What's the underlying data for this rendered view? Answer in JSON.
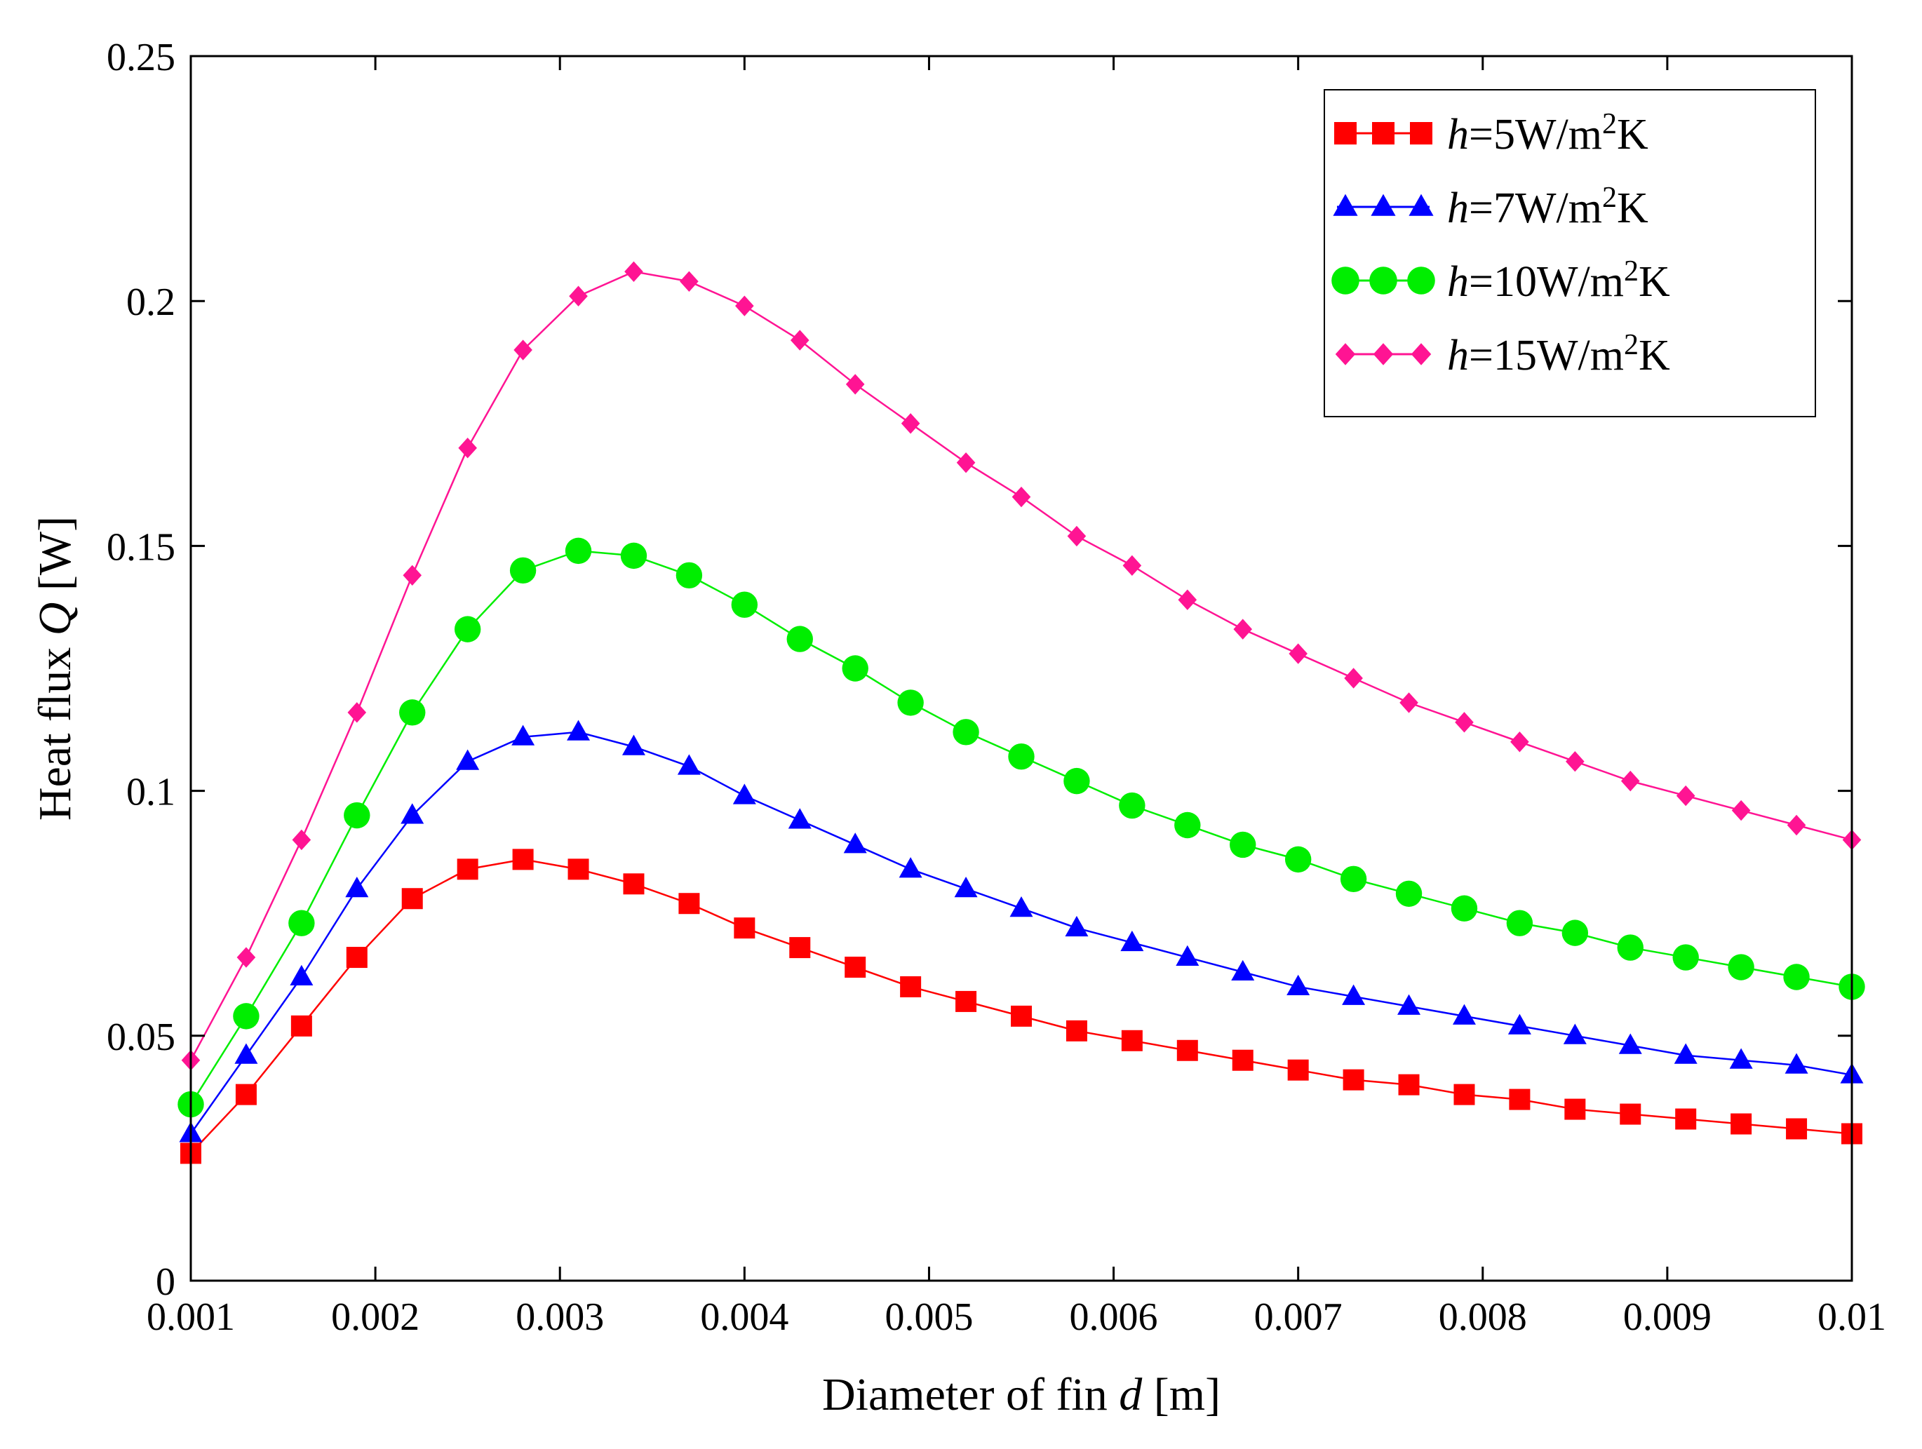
{
  "chart_data": {
    "type": "line",
    "title": "",
    "xlabel": {
      "prefix": "Diameter of fin ",
      "var": "d",
      "suffix": " [m]"
    },
    "ylabel": {
      "prefix": "Heat flux ",
      "var": "Q",
      "suffix": " [W]"
    },
    "xlim": [
      0.001,
      0.01
    ],
    "ylim": [
      0,
      0.25
    ],
    "x_ticks": [
      0.001,
      0.002,
      0.003,
      0.004,
      0.005,
      0.006,
      0.007,
      0.008,
      0.009,
      0.01
    ],
    "x_tick_labels": [
      "0.001",
      "0.002",
      "0.003",
      "0.004",
      "0.005",
      "0.006",
      "0.007",
      "0.008",
      "0.009",
      "0.01"
    ],
    "y_ticks": [
      0,
      0.05,
      0.1,
      0.15,
      0.2,
      0.25
    ],
    "y_tick_labels": [
      "0",
      "0.05",
      "0.1",
      "0.15",
      "0.2",
      "0.25"
    ],
    "grid": false,
    "legend_position": "top-right",
    "x": [
      0.001,
      0.0013,
      0.0016,
      0.0019,
      0.0022,
      0.0025,
      0.0028,
      0.0031,
      0.0034,
      0.0037,
      0.004,
      0.0043,
      0.0046,
      0.0049,
      0.0052,
      0.0055,
      0.0058,
      0.0061,
      0.0064,
      0.0067,
      0.007,
      0.0073,
      0.0076,
      0.0079,
      0.0082,
      0.0085,
      0.0088,
      0.0091,
      0.0094,
      0.0097,
      0.01
    ],
    "series": [
      {
        "name": "h=5W/m²K",
        "label_var": "h",
        "label_eq": "=5W/m",
        "label_sup": "2",
        "label_unit": "K",
        "color": "#ff0000",
        "marker": "square",
        "values": [
          0.026,
          0.038,
          0.052,
          0.066,
          0.078,
          0.084,
          0.086,
          0.084,
          0.081,
          0.077,
          0.072,
          0.068,
          0.064,
          0.06,
          0.057,
          0.054,
          0.051,
          0.049,
          0.047,
          0.045,
          0.043,
          0.041,
          0.04,
          0.038,
          0.037,
          0.035,
          0.034,
          0.033,
          0.032,
          0.031,
          0.03
        ]
      },
      {
        "name": "h=7W/m²K",
        "label_var": "h",
        "label_eq": "=7W/m",
        "label_sup": "2",
        "label_unit": "K",
        "color": "#0000ff",
        "marker": "triangle",
        "values": [
          0.03,
          0.046,
          0.062,
          0.08,
          0.095,
          0.106,
          0.111,
          0.112,
          0.109,
          0.105,
          0.099,
          0.094,
          0.089,
          0.084,
          0.08,
          0.076,
          0.072,
          0.069,
          0.066,
          0.063,
          0.06,
          0.058,
          0.056,
          0.054,
          0.052,
          0.05,
          0.048,
          0.046,
          0.045,
          0.044,
          0.042
        ]
      },
      {
        "name": "h=10W/m²K",
        "label_var": "h",
        "label_eq": "=10W/m",
        "label_sup": "2",
        "label_unit": "K",
        "color": "#00ee00",
        "marker": "circle",
        "values": [
          0.036,
          0.054,
          0.073,
          0.095,
          0.116,
          0.133,
          0.145,
          0.149,
          0.148,
          0.144,
          0.138,
          0.131,
          0.125,
          0.118,
          0.112,
          0.107,
          0.102,
          0.097,
          0.093,
          0.089,
          0.086,
          0.082,
          0.079,
          0.076,
          0.073,
          0.071,
          0.068,
          0.066,
          0.064,
          0.062,
          0.06
        ]
      },
      {
        "name": "h=15W/m²K",
        "label_var": "h",
        "label_eq": "=15W/m",
        "label_sup": "2",
        "label_unit": "K",
        "color": "#ff1493",
        "marker": "diamond",
        "values": [
          0.045,
          0.066,
          0.09,
          0.116,
          0.144,
          0.17,
          0.19,
          0.201,
          0.206,
          0.204,
          0.199,
          0.192,
          0.183,
          0.175,
          0.167,
          0.16,
          0.152,
          0.146,
          0.139,
          0.133,
          0.128,
          0.123,
          0.118,
          0.114,
          0.11,
          0.106,
          0.102,
          0.099,
          0.096,
          0.093,
          0.09
        ]
      }
    ]
  }
}
